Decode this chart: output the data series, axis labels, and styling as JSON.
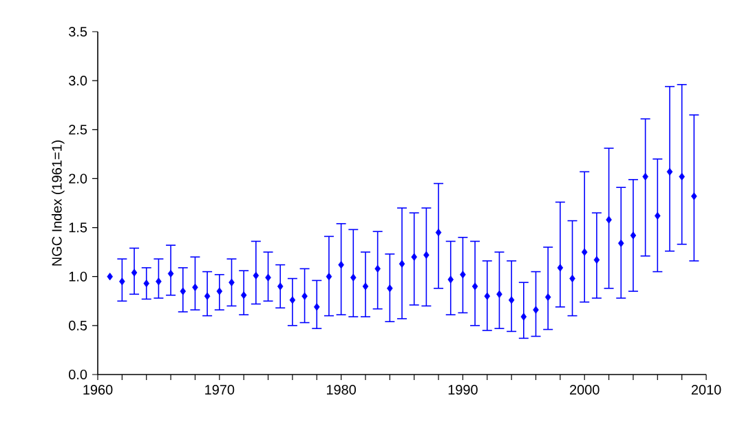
{
  "chart_data": {
    "type": "scatter",
    "ylabel": "NGC Index (1961=1)",
    "x": [
      1961,
      1962,
      1963,
      1964,
      1965,
      1966,
      1967,
      1968,
      1969,
      1970,
      1971,
      1972,
      1973,
      1974,
      1975,
      1976,
      1977,
      1978,
      1979,
      1980,
      1981,
      1982,
      1983,
      1984,
      1985,
      1986,
      1987,
      1988,
      1989,
      1990,
      1991,
      1992,
      1993,
      1994,
      1995,
      1996,
      1997,
      1998,
      1999,
      2000,
      2001,
      2002,
      2003,
      2004,
      2005,
      2006,
      2007,
      2008,
      2009
    ],
    "values": [
      1.0,
      0.95,
      1.04,
      0.93,
      0.95,
      1.03,
      0.85,
      0.89,
      0.8,
      0.85,
      0.94,
      0.81,
      1.01,
      0.99,
      0.9,
      0.76,
      0.8,
      0.69,
      1.0,
      1.12,
      0.99,
      0.9,
      1.08,
      0.88,
      1.13,
      1.2,
      1.22,
      1.45,
      0.97,
      1.02,
      0.9,
      0.8,
      0.82,
      0.76,
      0.59,
      0.66,
      0.79,
      1.09,
      0.98,
      1.25,
      1.17,
      1.58,
      1.34,
      1.42,
      2.02,
      1.62,
      2.07,
      2.02,
      1.82
    ],
    "errors": [
      null,
      [
        0.75,
        1.18
      ],
      [
        0.82,
        1.29
      ],
      [
        0.77,
        1.09
      ],
      [
        0.78,
        1.18
      ],
      [
        0.81,
        1.32
      ],
      [
        0.64,
        1.09
      ],
      [
        0.66,
        1.2
      ],
      [
        0.6,
        1.05
      ],
      [
        0.66,
        1.02
      ],
      [
        0.7,
        1.18
      ],
      [
        0.61,
        1.06
      ],
      [
        0.72,
        1.36
      ],
      [
        0.75,
        1.25
      ],
      [
        0.68,
        1.12
      ],
      [
        0.5,
        0.98
      ],
      [
        0.53,
        1.08
      ],
      [
        0.47,
        0.96
      ],
      [
        0.6,
        1.41
      ],
      [
        0.61,
        1.54
      ],
      [
        0.59,
        1.48
      ],
      [
        0.59,
        1.25
      ],
      [
        0.67,
        1.46
      ],
      [
        0.54,
        1.23
      ],
      [
        0.57,
        1.7
      ],
      [
        0.71,
        1.65
      ],
      [
        0.7,
        1.7
      ],
      [
        0.88,
        1.95
      ],
      [
        0.61,
        1.36
      ],
      [
        0.63,
        1.4
      ],
      [
        0.5,
        1.36
      ],
      [
        0.45,
        1.16
      ],
      [
        0.47,
        1.25
      ],
      [
        0.44,
        1.16
      ],
      [
        0.37,
        0.94
      ],
      [
        0.39,
        1.05
      ],
      [
        0.46,
        1.3
      ],
      [
        0.69,
        1.76
      ],
      [
        0.6,
        1.57
      ],
      [
        0.74,
        2.07
      ],
      [
        0.78,
        1.65
      ],
      [
        0.88,
        2.31
      ],
      [
        0.78,
        1.91
      ],
      [
        0.85,
        1.99
      ],
      [
        1.21,
        2.61
      ],
      [
        1.05,
        2.2
      ],
      [
        1.26,
        2.94
      ],
      [
        1.33,
        2.96
      ],
      [
        1.16,
        2.65
      ]
    ],
    "color": "#0000ff",
    "marker": "diamond",
    "xlim": [
      1960,
      2010
    ],
    "xticks": [
      1960,
      {
        "value": 1962,
        "label": null
      },
      {
        "value": 1964,
        "label": null
      },
      {
        "value": 1966,
        "label": null
      },
      {
        "value": 1968,
        "label": null
      },
      1970,
      {
        "value": 1972,
        "label": null
      },
      {
        "value": 1974,
        "label": null
      },
      {
        "value": 1976,
        "label": null
      },
      {
        "value": 1978,
        "label": null
      },
      1980,
      {
        "value": 1982,
        "label": null
      },
      {
        "value": 1984,
        "label": null
      },
      {
        "value": 1986,
        "label": null
      },
      {
        "value": 1988,
        "label": null
      },
      1990,
      {
        "value": 1992,
        "label": null
      },
      {
        "value": 1994,
        "label": null
      },
      {
        "value": 1996,
        "label": null
      },
      {
        "value": 1998,
        "label": null
      },
      2000,
      {
        "value": 2002,
        "label": null
      },
      {
        "value": 2004,
        "label": null
      },
      {
        "value": 2006,
        "label": null
      },
      {
        "value": 2008,
        "label": null
      },
      2010
    ],
    "ylim": [
      0,
      3.5
    ],
    "yticks": [
      {
        "value": 0,
        "label": "0.0"
      },
      {
        "value": 0.5,
        "label": "0.5"
      },
      {
        "value": 1,
        "label": "1.0"
      },
      {
        "value": 1.5,
        "label": "1.5"
      },
      {
        "value": 2,
        "label": "2.0"
      },
      {
        "value": 2.5,
        "label": "2.5"
      },
      {
        "value": 3,
        "label": "3.0"
      },
      {
        "value": 3.5,
        "label": "3.5"
      }
    ]
  }
}
